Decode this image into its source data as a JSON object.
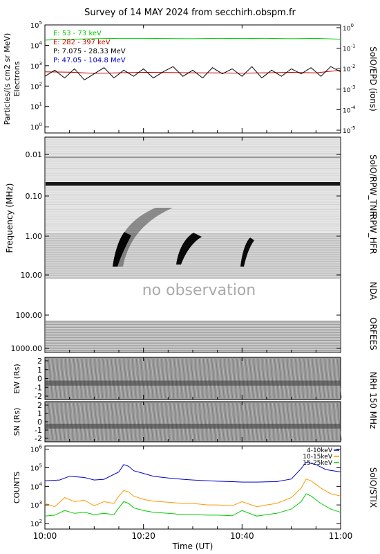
{
  "title": "Survey of 14 MAY 2024 from secchirh.obspm.fr",
  "chart_data": [
    {
      "panel": "SolO/EPD",
      "type": "line",
      "right_label": "SolO/EPD (ions)",
      "ylabel_line1": "Particles/(s cm2 sr MeV)",
      "ylabel_line2": "Electrons",
      "y_scale": "log",
      "ylim": [
        0.5,
        100000
      ],
      "y_ticks": [
        "10^0",
        "10^1",
        "10^2",
        "10^3",
        "10^4",
        "10^5"
      ],
      "y_ticks_base": [
        "10",
        "10",
        "10",
        "10",
        "10",
        "10"
      ],
      "y_ticks_exp": [
        "0",
        "1",
        "2",
        "3",
        "4",
        "5"
      ],
      "y2_ticks_base": [
        "10",
        "10",
        "10",
        "10",
        "10",
        "10",
        "10"
      ],
      "y2_ticks_exp": [
        "0",
        "-1",
        "-2",
        "-3",
        "-4",
        "-5",
        ""
      ],
      "legend": [
        {
          "label": "E: 53 - 73 keV",
          "color": "#00cc00"
        },
        {
          "label": "E: 282 - 397 keV",
          "color": "#cc0000"
        },
        {
          "label": "P: 7.075 - 28.33 MeV",
          "color": "#000000"
        },
        {
          "label": "P: 47.05 - 104.8 MeV",
          "color": "#0000cc"
        }
      ],
      "series": [
        {
          "name": "E: 53 - 73 keV",
          "color": "#00cc00",
          "x": [
            0,
            5,
            10,
            15,
            20,
            25,
            30,
            35,
            40,
            45,
            50,
            55,
            60
          ],
          "values": [
            18000,
            20000,
            21000,
            22000,
            22000,
            21500,
            21000,
            22000,
            21500,
            22000,
            21000,
            22000,
            20000
          ]
        },
        {
          "name": "E: 282 - 397 keV",
          "color": "#cc0000",
          "x": [
            0,
            5,
            10,
            15,
            20,
            25,
            30,
            35,
            40,
            45,
            50,
            55,
            60
          ],
          "values": [
            500,
            480,
            420,
            450,
            470,
            460,
            450,
            440,
            430,
            450,
            470,
            440,
            600
          ]
        },
        {
          "name": "P: 7.075 - 28.33 MeV",
          "color": "#000000",
          "x": [
            0,
            2,
            4,
            6,
            8,
            10,
            12,
            14,
            16,
            18,
            20,
            22,
            24,
            26,
            28,
            30,
            32,
            34,
            36,
            38,
            40,
            42,
            44,
            46,
            48,
            50,
            52,
            54,
            56,
            58,
            60
          ],
          "values": [
            300,
            600,
            250,
            700,
            200,
            400,
            800,
            250,
            600,
            300,
            700,
            250,
            500,
            900,
            300,
            600,
            250,
            800,
            400,
            700,
            300,
            900,
            250,
            600,
            300,
            700,
            400,
            800,
            300,
            900,
            500
          ]
        }
      ]
    },
    {
      "panel": "Dynamic spectrum",
      "type": "heatmap",
      "ylabel": "Frequency (MHz)",
      "y_scale": "log",
      "y_ticks": [
        "0.01",
        "0.10",
        "1.00",
        "10.00",
        "100.00",
        "1000.00"
      ],
      "right_labels": [
        "SolO/RPW_TNR",
        "RPW_HFR",
        "NDA",
        "ORFEES"
      ],
      "annotation": "no observation"
    },
    {
      "panel": "NRH 150 MHz EW",
      "type": "heatmap",
      "ylabel": "EW (Rs)",
      "y_ticks": [
        "2",
        "1",
        "0",
        "-1",
        "-2"
      ],
      "right_label": "NRH 150 MHz"
    },
    {
      "panel": "NRH 150 MHz SN",
      "type": "heatmap",
      "ylabel": "SN (Rs)",
      "y_ticks": [
        "2",
        "1",
        "0",
        "-1",
        "-2"
      ]
    },
    {
      "panel": "SolO/STIX",
      "type": "line",
      "ylabel": "COUNTS",
      "right_label": "SolO/STIX",
      "y_scale": "log",
      "ylim": [
        50,
        1500000
      ],
      "y_ticks_base": [
        "10",
        "10",
        "10",
        "10",
        "10"
      ],
      "y_ticks_exp": [
        "2",
        "3",
        "4",
        "5",
        "6"
      ],
      "series": [
        {
          "name": "4-10keV",
          "color": "#0000cc",
          "x": [
            0,
            3,
            5,
            8,
            10,
            12,
            15,
            16,
            17,
            18,
            20,
            22,
            25,
            28,
            30,
            33,
            35,
            38,
            40,
            43,
            45,
            47,
            50,
            52,
            53,
            55,
            57,
            60
          ],
          "values": [
            20000,
            22000,
            35000,
            30000,
            22000,
            24000,
            60000,
            150000,
            120000,
            70000,
            50000,
            35000,
            28000,
            24000,
            22000,
            20000,
            19000,
            18000,
            17000,
            17000,
            17500,
            18000,
            25000,
            90000,
            200000,
            150000,
            80000,
            60000
          ]
        },
        {
          "name": "10-15keV",
          "color": "#ff9900",
          "x": [
            0,
            2,
            4,
            6,
            8,
            10,
            12,
            14,
            15,
            16,
            17,
            18,
            20,
            22,
            25,
            28,
            30,
            33,
            35,
            38,
            40,
            43,
            45,
            47,
            50,
            52,
            53,
            54,
            56,
            58,
            60
          ],
          "values": [
            1200,
            800,
            2500,
            1500,
            1800,
            900,
            1500,
            1200,
            3000,
            6000,
            5000,
            3000,
            2000,
            1600,
            1400,
            1200,
            1200,
            1000,
            1000,
            900,
            1500,
            800,
            1000,
            1200,
            2500,
            8000,
            25000,
            20000,
            8000,
            4000,
            3000
          ]
        },
        {
          "name": "15-25keV",
          "color": "#00cc00",
          "x": [
            0,
            2,
            4,
            6,
            8,
            10,
            12,
            14,
            15,
            16,
            17,
            18,
            20,
            22,
            25,
            28,
            30,
            33,
            35,
            38,
            40,
            43,
            45,
            47,
            50,
            52,
            53,
            54,
            56,
            58,
            60
          ],
          "values": [
            250,
            280,
            500,
            350,
            400,
            300,
            350,
            300,
            700,
            1500,
            1200,
            700,
            500,
            400,
            350,
            300,
            300,
            280,
            280,
            260,
            500,
            250,
            300,
            350,
            600,
            1500,
            4000,
            3000,
            1200,
            600,
            400
          ]
        }
      ],
      "legend": [
        {
          "label": "4-10keV",
          "color": "#0000cc"
        },
        {
          "label": "10-15keV",
          "color": "#ff9900"
        },
        {
          "label": "15-25keV",
          "color": "#00cc00"
        }
      ]
    }
  ],
  "x_axis": {
    "xlabel": "Time (UT)",
    "xlim": [
      0,
      60
    ],
    "ticks": [
      {
        "label": "10:00",
        "min": 0
      },
      {
        "label": "10:20",
        "min": 20
      },
      {
        "label": "10:40",
        "min": 40
      },
      {
        "label": "11:00",
        "min": 60
      }
    ]
  }
}
